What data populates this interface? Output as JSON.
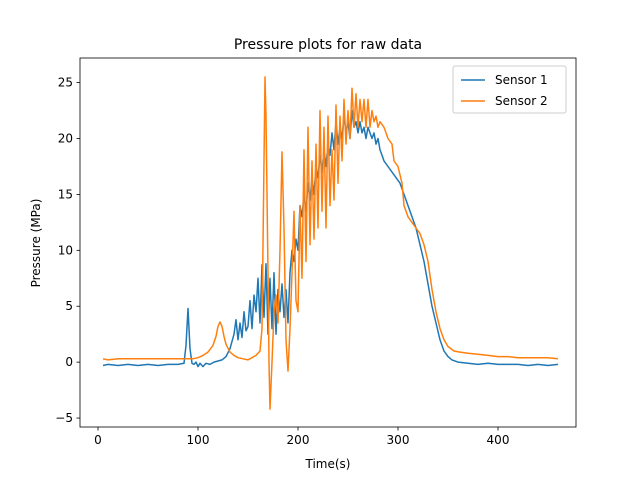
{
  "chart_data": {
    "type": "line",
    "title": "Pressure plots for raw data",
    "xlabel": "Time(s)",
    "ylabel": "Pressure (MPa)",
    "xlim": [
      -18,
      478
    ],
    "ylim": [
      -5.8,
      27.2
    ],
    "xticks": [
      0,
      100,
      200,
      300,
      400
    ],
    "yticks": [
      -5,
      0,
      5,
      10,
      15,
      20,
      25
    ],
    "grid": false,
    "legend_position": "top-right",
    "series": [
      {
        "name": "Sensor 1",
        "color": "#1f77b4",
        "points": [
          [
            5,
            -0.3
          ],
          [
            10,
            -0.2
          ],
          [
            20,
            -0.3
          ],
          [
            30,
            -0.2
          ],
          [
            40,
            -0.3
          ],
          [
            50,
            -0.2
          ],
          [
            60,
            -0.3
          ],
          [
            70,
            -0.2
          ],
          [
            80,
            -0.2
          ],
          [
            86,
            -0.1
          ],
          [
            88,
            1.5
          ],
          [
            90,
            4.8
          ],
          [
            92,
            1.2
          ],
          [
            94,
            -0.1
          ],
          [
            96,
            -0.2
          ],
          [
            98,
            0.0
          ],
          [
            100,
            -0.4
          ],
          [
            102,
            -0.1
          ],
          [
            105,
            -0.4
          ],
          [
            108,
            -0.1
          ],
          [
            112,
            -0.2
          ],
          [
            116,
            0.0
          ],
          [
            120,
            0.1
          ],
          [
            124,
            0.2
          ],
          [
            128,
            0.5
          ],
          [
            132,
            1.2
          ],
          [
            136,
            2.5
          ],
          [
            138,
            3.8
          ],
          [
            140,
            2.0
          ],
          [
            142,
            3.5
          ],
          [
            144,
            2.2
          ],
          [
            146,
            4.5
          ],
          [
            148,
            2.8
          ],
          [
            150,
            3.2
          ],
          [
            152,
            5.5
          ],
          [
            154,
            3.0
          ],
          [
            156,
            6.0
          ],
          [
            158,
            4.5
          ],
          [
            160,
            7.5
          ],
          [
            162,
            3.5
          ],
          [
            164,
            8.7
          ],
          [
            166,
            4.0
          ],
          [
            168,
            8.8
          ],
          [
            170,
            2.5
          ],
          [
            172,
            7.5
          ],
          [
            174,
            3.0
          ],
          [
            176,
            8.0
          ],
          [
            178,
            2.5
          ],
          [
            180,
            6.5
          ],
          [
            182,
            4.5
          ],
          [
            184,
            7.0
          ],
          [
            186,
            4.0
          ],
          [
            188,
            6.5
          ],
          [
            190,
            3.5
          ],
          [
            192,
            8.0
          ],
          [
            194,
            10.0
          ],
          [
            196,
            9.0
          ],
          [
            198,
            11.0
          ],
          [
            200,
            10.0
          ],
          [
            202,
            14.0
          ],
          [
            204,
            13.0
          ],
          [
            206,
            15.0
          ],
          [
            208,
            13.5
          ],
          [
            210,
            16.0
          ],
          [
            212,
            14.5
          ],
          [
            214,
            16.5
          ],
          [
            216,
            15.0
          ],
          [
            218,
            17.5
          ],
          [
            220,
            16.5
          ],
          [
            222,
            18.5
          ],
          [
            224,
            17.0
          ],
          [
            226,
            19.0
          ],
          [
            228,
            17.5
          ],
          [
            230,
            19.5
          ],
          [
            232,
            18.5
          ],
          [
            234,
            20.5
          ],
          [
            236,
            19.0
          ],
          [
            238,
            21.5
          ],
          [
            240,
            19.5
          ],
          [
            242,
            21.0
          ],
          [
            244,
            20.0
          ],
          [
            246,
            22.0
          ],
          [
            248,
            20.5
          ],
          [
            250,
            21.5
          ],
          [
            252,
            20.0
          ],
          [
            254,
            22.5
          ],
          [
            256,
            21.0
          ],
          [
            258,
            21.5
          ],
          [
            260,
            20.5
          ],
          [
            262,
            21.5
          ],
          [
            264,
            20.5
          ],
          [
            266,
            21.0
          ],
          [
            268,
            20.0
          ],
          [
            270,
            21.0
          ],
          [
            272,
            20.5
          ],
          [
            274,
            20.0
          ],
          [
            276,
            20.5
          ],
          [
            278,
            19.5
          ],
          [
            280,
            20.0
          ],
          [
            282,
            19.0
          ],
          [
            284,
            18.5
          ],
          [
            286,
            18.0
          ],
          [
            290,
            17.5
          ],
          [
            294,
            17.0
          ],
          [
            298,
            16.5
          ],
          [
            302,
            16.0
          ],
          [
            306,
            15.0
          ],
          [
            310,
            14.0
          ],
          [
            314,
            13.0
          ],
          [
            318,
            12.0
          ],
          [
            322,
            10.5
          ],
          [
            326,
            9.0
          ],
          [
            330,
            7.0
          ],
          [
            334,
            5.0
          ],
          [
            338,
            3.5
          ],
          [
            342,
            2.0
          ],
          [
            346,
            1.0
          ],
          [
            350,
            0.5
          ],
          [
            354,
            0.2
          ],
          [
            360,
            0.0
          ],
          [
            370,
            -0.1
          ],
          [
            380,
            -0.2
          ],
          [
            390,
            -0.1
          ],
          [
            400,
            -0.2
          ],
          [
            410,
            -0.2
          ],
          [
            420,
            -0.2
          ],
          [
            430,
            -0.3
          ],
          [
            440,
            -0.2
          ],
          [
            450,
            -0.3
          ],
          [
            460,
            -0.2
          ]
        ]
      },
      {
        "name": "Sensor 2",
        "color": "#ff7f0e",
        "points": [
          [
            5,
            0.3
          ],
          [
            10,
            0.2
          ],
          [
            20,
            0.3
          ],
          [
            30,
            0.3
          ],
          [
            40,
            0.3
          ],
          [
            50,
            0.3
          ],
          [
            60,
            0.3
          ],
          [
            70,
            0.3
          ],
          [
            80,
            0.3
          ],
          [
            90,
            0.3
          ],
          [
            95,
            0.3
          ],
          [
            100,
            0.4
          ],
          [
            105,
            0.6
          ],
          [
            110,
            0.9
          ],
          [
            115,
            1.5
          ],
          [
            118,
            2.3
          ],
          [
            120,
            3.2
          ],
          [
            122,
            3.6
          ],
          [
            124,
            3.2
          ],
          [
            126,
            2.3
          ],
          [
            128,
            1.6
          ],
          [
            132,
            0.9
          ],
          [
            136,
            0.6
          ],
          [
            140,
            0.4
          ],
          [
            145,
            0.3
          ],
          [
            150,
            0.2
          ],
          [
            154,
            0.4
          ],
          [
            158,
            0.6
          ],
          [
            162,
            1.0
          ],
          [
            164,
            3.0
          ],
          [
            166,
            18.0
          ],
          [
            167,
            25.5
          ],
          [
            168,
            22.0
          ],
          [
            170,
            8.0
          ],
          [
            171,
            0.0
          ],
          [
            172,
            -4.2
          ],
          [
            174,
            0.0
          ],
          [
            176,
            4.5
          ],
          [
            178,
            6.0
          ],
          [
            180,
            3.5
          ],
          [
            182,
            10.0
          ],
          [
            184,
            18.8
          ],
          [
            186,
            12.0
          ],
          [
            188,
            2.0
          ],
          [
            190,
            -0.8
          ],
          [
            192,
            3.0
          ],
          [
            194,
            8.0
          ],
          [
            196,
            13.5
          ],
          [
            198,
            5.5
          ],
          [
            200,
            4.5
          ],
          [
            202,
            14.0
          ],
          [
            204,
            7.5
          ],
          [
            206,
            19.0
          ],
          [
            208,
            9.0
          ],
          [
            210,
            21.0
          ],
          [
            212,
            10.5
          ],
          [
            214,
            18.0
          ],
          [
            216,
            11.0
          ],
          [
            218,
            19.5
          ],
          [
            220,
            12.0
          ],
          [
            222,
            22.5
          ],
          [
            224,
            13.5
          ],
          [
            226,
            21.0
          ],
          [
            228,
            12.0
          ],
          [
            230,
            22.0
          ],
          [
            232,
            14.0
          ],
          [
            234,
            19.0
          ],
          [
            236,
            14.5
          ],
          [
            238,
            23.0
          ],
          [
            240,
            16.0
          ],
          [
            242,
            22.0
          ],
          [
            244,
            18.0
          ],
          [
            246,
            23.5
          ],
          [
            248,
            19.5
          ],
          [
            250,
            22.5
          ],
          [
            252,
            20.0
          ],
          [
            254,
            24.5
          ],
          [
            256,
            21.0
          ],
          [
            258,
            24.0
          ],
          [
            260,
            21.0
          ],
          [
            262,
            23.5
          ],
          [
            264,
            21.5
          ],
          [
            266,
            23.5
          ],
          [
            268,
            21.0
          ],
          [
            270,
            23.5
          ],
          [
            272,
            21.0
          ],
          [
            274,
            22.5
          ],
          [
            276,
            21.5
          ],
          [
            278,
            22.0
          ],
          [
            280,
            21.0
          ],
          [
            282,
            21.5
          ],
          [
            286,
            21.0
          ],
          [
            290,
            20.0
          ],
          [
            294,
            19.5
          ],
          [
            296,
            18.0
          ],
          [
            300,
            17.5
          ],
          [
            304,
            16.0
          ],
          [
            306,
            14.0
          ],
          [
            310,
            13.0
          ],
          [
            314,
            12.5
          ],
          [
            318,
            12.0
          ],
          [
            322,
            11.5
          ],
          [
            326,
            10.5
          ],
          [
            330,
            9.0
          ],
          [
            334,
            6.5
          ],
          [
            338,
            4.5
          ],
          [
            342,
            3.0
          ],
          [
            346,
            2.0
          ],
          [
            350,
            1.4
          ],
          [
            356,
            1.0
          ],
          [
            362,
            0.9
          ],
          [
            370,
            0.8
          ],
          [
            380,
            0.7
          ],
          [
            390,
            0.6
          ],
          [
            400,
            0.5
          ],
          [
            410,
            0.5
          ],
          [
            420,
            0.4
          ],
          [
            430,
            0.4
          ],
          [
            440,
            0.4
          ],
          [
            450,
            0.4
          ],
          [
            460,
            0.3
          ]
        ]
      }
    ]
  }
}
